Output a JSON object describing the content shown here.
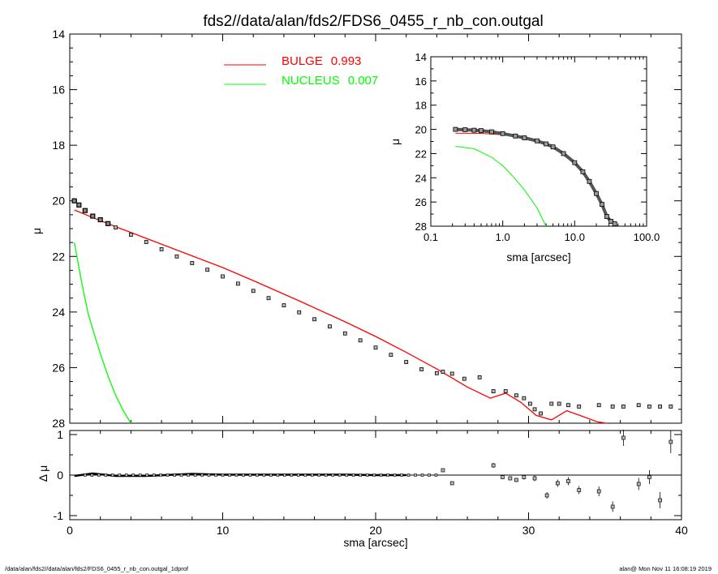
{
  "title": "fds2//data/alan/fds2/FDS6_0455_r_nb_con.outgal",
  "footer": {
    "left": "/data/alan/fds2//data/alan/fds2/FDS6_0455_r_nb_con.outgal_1dprof",
    "right": "alan@  Mon Nov 11 16:08:19 2019"
  },
  "legend": [
    {
      "label": "BULGE",
      "value": "0.993",
      "color": "#ff0000"
    },
    {
      "label": "NUCLEUS",
      "value": "0.007",
      "color": "#00ff00"
    }
  ],
  "colors": {
    "bulge": "#ff0000",
    "nucleus": "#00ff00",
    "data": "#000000",
    "zero_line": "#000000"
  },
  "chart_data": [
    {
      "id": "main_profile",
      "type": "scatter",
      "xlabel": "sma [arcsec]",
      "ylabel": "μ",
      "xlim": [
        0,
        40
      ],
      "ylim": [
        28,
        14
      ],
      "y_inverted": true,
      "x_ticks": [
        "0",
        "10",
        "20",
        "30",
        "40"
      ],
      "y_ticks": [
        "14",
        "16",
        "18",
        "20",
        "22",
        "24",
        "26",
        "28"
      ],
      "data_points": {
        "x": [
          0.3,
          0.6,
          1.0,
          1.5,
          2.0,
          2.5,
          3.0,
          4.0,
          5.0,
          6.0,
          7.0,
          8.0,
          9.0,
          10.0,
          11.0,
          12.0,
          13.0,
          14.0,
          15.0,
          16.0,
          17.0,
          18.0,
          19.0,
          20.0,
          21.0,
          22.0,
          23.0,
          24.0,
          24.4,
          25.0,
          25.8,
          26.8,
          27.7,
          28.5,
          29.2,
          29.7,
          30.1,
          30.4,
          30.8,
          31.5,
          32.0,
          32.6,
          33.3,
          34.6,
          35.5,
          36.2,
          37.2,
          37.9,
          38.6,
          39.3
        ],
        "y": [
          20.0,
          20.15,
          20.35,
          20.55,
          20.68,
          20.82,
          20.96,
          21.22,
          21.48,
          21.74,
          22.0,
          22.24,
          22.48,
          22.72,
          22.98,
          23.24,
          23.5,
          23.76,
          24.01,
          24.26,
          24.52,
          24.77,
          25.02,
          25.28,
          25.54,
          25.8,
          26.06,
          26.2,
          26.15,
          26.22,
          26.4,
          26.35,
          26.85,
          26.85,
          27.0,
          27.1,
          27.3,
          27.5,
          27.65,
          27.3,
          27.3,
          27.35,
          27.4,
          27.35,
          27.4,
          27.4,
          27.35,
          27.4,
          27.4,
          27.4
        ]
      },
      "series": [
        {
          "name": "BULGE",
          "color": "#ff0000",
          "x": [
            0.3,
            1.5,
            3,
            5,
            8,
            10,
            12,
            15,
            18,
            20,
            22,
            24,
            26,
            27.5,
            28.5,
            29.5,
            30.5,
            31.5,
            32.5,
            33.5,
            34.5,
            35.1
          ],
          "y": [
            20.33,
            20.6,
            20.93,
            21.35,
            21.98,
            22.4,
            22.87,
            23.6,
            24.35,
            24.88,
            25.45,
            26.05,
            26.7,
            27.1,
            26.92,
            27.25,
            27.72,
            27.88,
            27.55,
            27.75,
            27.95,
            28.0
          ]
        },
        {
          "name": "NUCLEUS",
          "color": "#00ff00",
          "x": [
            0.3,
            0.5,
            0.8,
            1.2,
            1.6,
            2.0,
            2.5,
            3.0,
            3.5,
            4.0
          ],
          "y": [
            21.5,
            22.1,
            23.0,
            24.05,
            24.8,
            25.5,
            26.3,
            27.0,
            27.55,
            28.0
          ]
        }
      ]
    },
    {
      "id": "inset_profile_log",
      "type": "scatter",
      "xlabel": "sma [arcsec]",
      "ylabel": "μ",
      "x_scale": "log",
      "xlim": [
        0.1,
        100
      ],
      "ylim": [
        28,
        14
      ],
      "y_inverted": true,
      "x_ticks": [
        "0.1",
        "1.0",
        "10.0",
        "100.0"
      ],
      "y_ticks": [
        "14",
        "16",
        "18",
        "20",
        "22",
        "24",
        "26",
        "28"
      ],
      "data_points": {
        "x": [
          0.22,
          0.3,
          0.4,
          0.5,
          0.7,
          1.0,
          1.5,
          2.0,
          3.0,
          4.0,
          5.0,
          7.0,
          10.0,
          13.0,
          16.0,
          20.0,
          24.0,
          28.0,
          32.0,
          36.0
        ],
        "y": [
          20.0,
          20.03,
          20.07,
          20.1,
          20.2,
          20.35,
          20.55,
          20.7,
          20.95,
          21.2,
          21.45,
          22.0,
          22.75,
          23.5,
          24.3,
          25.3,
          26.2,
          27.2,
          27.6,
          27.8
        ]
      },
      "series": [
        {
          "name": "BULGE",
          "color": "#ff0000",
          "x": [
            0.22,
            0.5,
            1.0,
            1.5
          ],
          "y": [
            20.32,
            20.33,
            20.45,
            20.55
          ]
        },
        {
          "name": "NUCLEUS",
          "color": "#00ff00",
          "x": [
            0.22,
            0.4,
            0.7,
            1.0,
            1.5,
            2.0,
            3.0,
            4.0
          ],
          "y": [
            21.4,
            21.6,
            22.3,
            23.0,
            24.1,
            25.0,
            26.5,
            28.0
          ]
        }
      ]
    },
    {
      "id": "residuals",
      "type": "scatter",
      "xlabel": "sma [arcsec]",
      "ylabel": "Δ μ",
      "xlim": [
        0,
        40
      ],
      "ylim": [
        -1.1,
        1.1
      ],
      "x_ticks": [
        "0",
        "10",
        "20",
        "30",
        "40"
      ],
      "y_ticks": [
        "1",
        "0",
        "-1"
      ],
      "zero_line": true,
      "points": {
        "x": [
          0.3,
          1.5,
          3,
          5,
          8,
          10,
          12,
          15,
          18,
          20,
          22,
          24.4,
          25.0,
          27.7,
          28.3,
          28.8,
          29.2,
          29.7,
          30.4,
          31.2,
          31.9,
          32.6,
          33.3,
          34.6,
          35.5,
          36.2,
          37.2,
          37.9,
          38.6,
          39.3
        ],
        "y": [
          -0.02,
          0.04,
          -0.02,
          -0.02,
          0.03,
          0.01,
          0.01,
          0.01,
          0.01,
          0.0,
          0.0,
          0.12,
          -0.2,
          0.24,
          -0.05,
          -0.08,
          -0.12,
          -0.05,
          -0.08,
          -0.5,
          -0.2,
          -0.15,
          -0.37,
          -0.4,
          -0.78,
          0.92,
          -0.22,
          -0.05,
          -0.62,
          0.82
        ],
        "err": [
          0,
          0,
          0,
          0,
          0,
          0,
          0,
          0,
          0,
          0,
          0,
          0.03,
          0.03,
          0.06,
          0.05,
          0.05,
          0.05,
          0.06,
          0.07,
          0.08,
          0.09,
          0.1,
          0.1,
          0.12,
          0.13,
          0.2,
          0.15,
          0.17,
          0.2,
          0.28
        ]
      }
    }
  ]
}
